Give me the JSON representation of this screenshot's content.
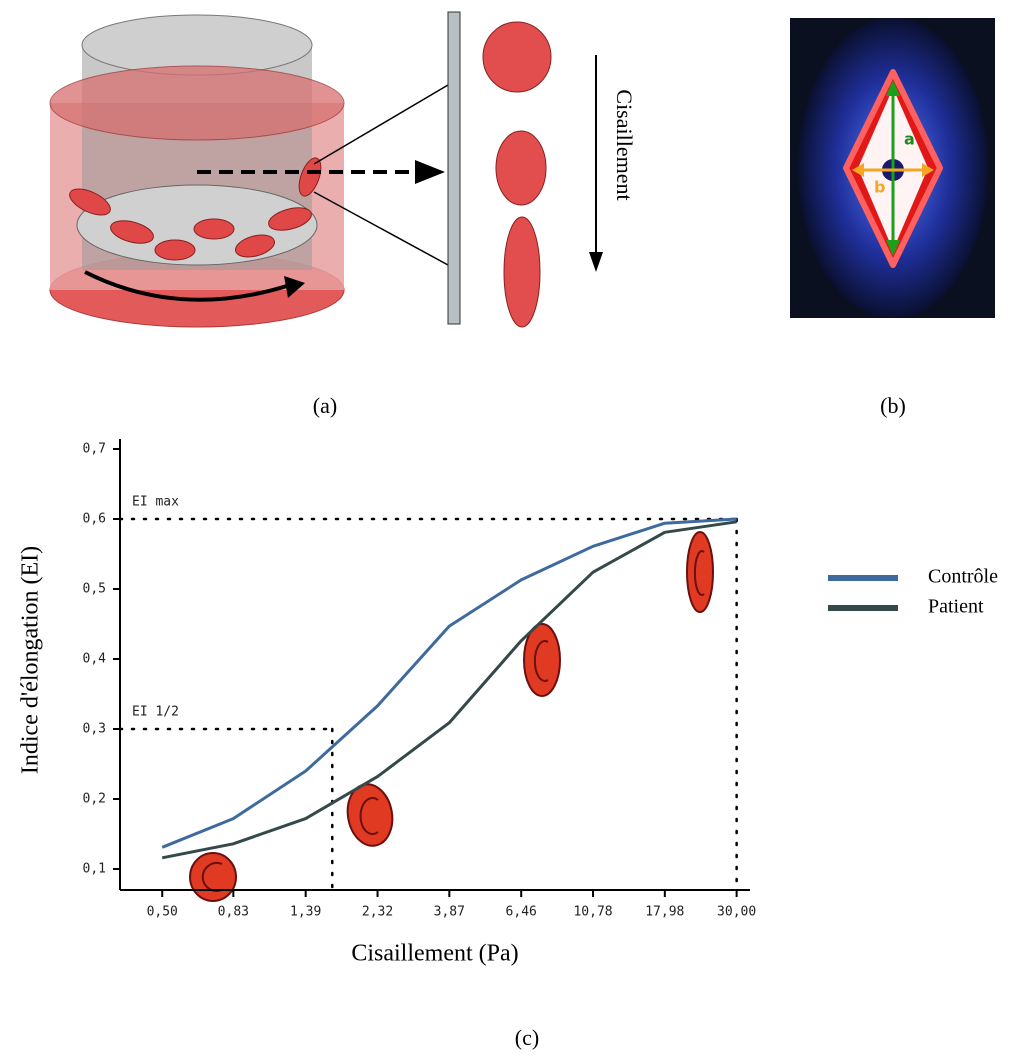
{
  "panel_a": {
    "caption": "(a)",
    "arrow_label": "Cisaillement"
  },
  "panel_b": {
    "caption": "(b)",
    "axis_a": "a",
    "axis_b": "b"
  },
  "panel_c": {
    "caption": "(c)"
  },
  "chart_data": {
    "type": "line",
    "x_label": "Cisaillement (Pa)",
    "y_label": "Indice d'élongation (EI)",
    "x": [
      0.5,
      0.83,
      1.39,
      2.32,
      3.87,
      6.46,
      10.78,
      17.98,
      30
    ],
    "series": [
      {
        "name": "Contrôle",
        "color": "#3e6a9e",
        "values": [
          0.131,
          0.172,
          0.24,
          0.333,
          0.447,
          0.513,
          0.561,
          0.594,
          0.6
        ]
      },
      {
        "name": "Patient",
        "color": "#34494a",
        "values": [
          0.116,
          0.136,
          0.172,
          0.232,
          0.309,
          0.426,
          0.524,
          0.581,
          0.596
        ]
      }
    ],
    "xscale": "log",
    "xlim": [
      0.37,
      33
    ],
    "xticks": [
      {
        "value": 0.5,
        "label": "0,50"
      },
      {
        "value": 0.83,
        "label": "0,83"
      },
      {
        "value": 1.39,
        "label": "1,39"
      },
      {
        "value": 2.32,
        "label": "2,32"
      },
      {
        "value": 3.87,
        "label": "3,87"
      },
      {
        "value": 6.46,
        "label": "6,46"
      },
      {
        "value": 10.78,
        "label": "10,78"
      },
      {
        "value": 17.98,
        "label": "17,98"
      },
      {
        "value": 30,
        "label": "30,00"
      }
    ],
    "ylim": [
      0.07,
      0.7
    ],
    "yticks": [
      {
        "value": 0.1,
        "label": "0,1"
      },
      {
        "value": 0.2,
        "label": "0,2"
      },
      {
        "value": 0.3,
        "label": "0,3"
      },
      {
        "value": 0.4,
        "label": "0,4"
      },
      {
        "value": 0.5,
        "label": "0,5"
      },
      {
        "value": 0.6,
        "label": "0,6"
      },
      {
        "value": 0.7,
        "label": "0,7"
      }
    ],
    "annotations": [
      {
        "text": "EI max",
        "x": 30,
        "y": 0.6
      },
      {
        "text": "EI 1/2",
        "x": 1.68,
        "y": 0.3
      }
    ],
    "grid": false,
    "legend": "right"
  }
}
